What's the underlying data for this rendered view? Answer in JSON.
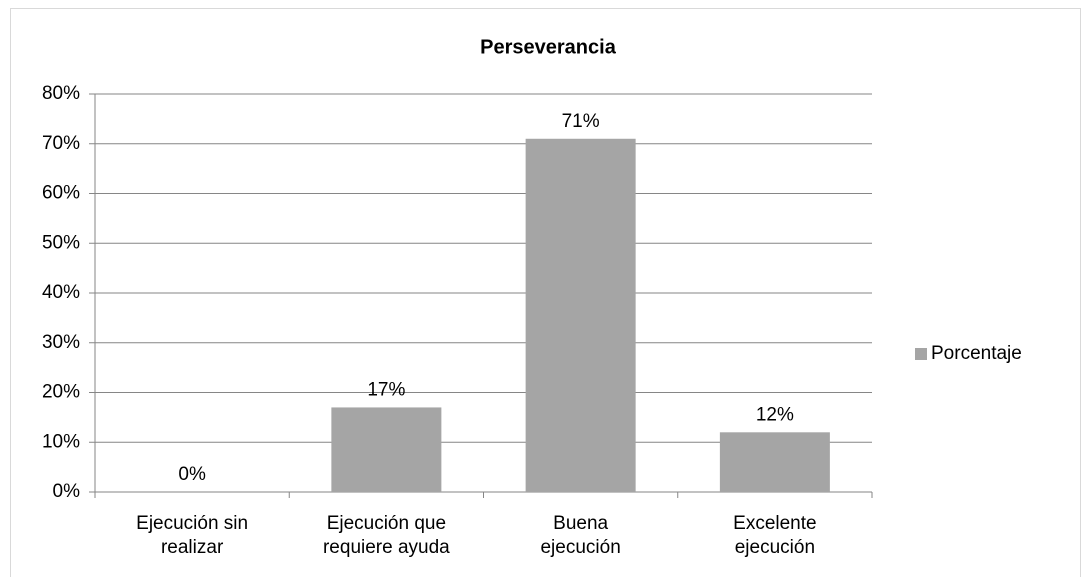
{
  "chart_data": {
    "type": "bar",
    "title": "Perseverancia",
    "categories": [
      "Ejecución sin realizar",
      "Ejecución que requiere ayuda",
      "Buena ejecución",
      "Excelente ejecución"
    ],
    "series": [
      {
        "name": "Porcentaje",
        "color": "#a5a5a5",
        "values": [
          0,
          17,
          71,
          12
        ],
        "value_labels": [
          "0%",
          "17%",
          "71%",
          "12%"
        ]
      }
    ],
    "ylim": [
      0,
      80
    ],
    "yticks": [
      {
        "value": 0,
        "label": "0%"
      },
      {
        "value": 10,
        "label": "10%"
      },
      {
        "value": 20,
        "label": "20%"
      },
      {
        "value": 30,
        "label": "30%"
      },
      {
        "value": 40,
        "label": "40%"
      },
      {
        "value": 50,
        "label": "50%"
      },
      {
        "value": 60,
        "label": "60%"
      },
      {
        "value": 70,
        "label": "70%"
      },
      {
        "value": 80,
        "label": "80%"
      }
    ],
    "grid": true,
    "legend": "right"
  }
}
